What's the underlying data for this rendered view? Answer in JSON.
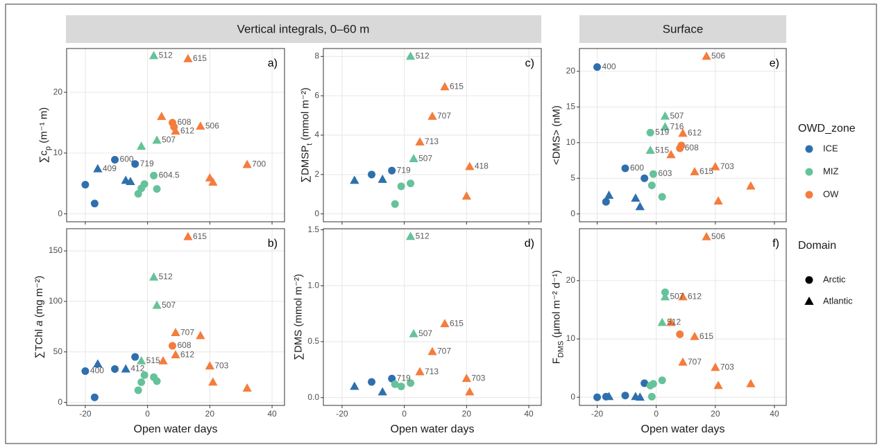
{
  "strips": [
    "Vertical integrals, 0–60 m",
    "Surface"
  ],
  "legend": {
    "zone_title": "OWD_zone",
    "zones": [
      {
        "name": "ICE",
        "color": "#2f6fad"
      },
      {
        "name": "MIZ",
        "color": "#66c29a"
      },
      {
        "name": "OW",
        "color": "#f47c3c"
      }
    ],
    "domain_title": "Domain",
    "domains": [
      {
        "name": "Arctic",
        "shape": "circle"
      },
      {
        "name": "Atlantic",
        "shape": "triangle"
      }
    ]
  },
  "chart_data": [
    {
      "type": "scatter",
      "panel_label": "a)",
      "ylabel": [
        {
          "text": "∑c"
        },
        {
          "text": "p",
          "sub": true
        },
        {
          "text": " (m⁻¹ m)"
        }
      ],
      "xlim": [
        -26,
        44
      ],
      "xticks": [
        -20,
        0,
        20,
        40
      ],
      "show_xtick_labels": false,
      "ylim": [
        -1.3,
        27.2
      ],
      "yticks": [
        0,
        10,
        20
      ],
      "grid": true,
      "x": [
        -20,
        -17,
        -16,
        -10.5,
        -7,
        -5.5,
        -4,
        2,
        -2,
        3,
        -3,
        -2,
        -1,
        2,
        3,
        13,
        4.5,
        8,
        8.5,
        9,
        17,
        32,
        20,
        21
      ],
      "y": [
        4.8,
        1.7,
        7.4,
        8.9,
        5.5,
        5.3,
        8.2,
        26,
        11.1,
        12.1,
        3.3,
        4.2,
        4.9,
        6.3,
        4.1,
        25.5,
        16,
        15,
        14.3,
        13.6,
        14.4,
        8.1,
        5.9,
        5.2
      ],
      "zone": [
        "ICE",
        "ICE",
        "ICE",
        "ICE",
        "ICE",
        "ICE",
        "ICE",
        "MIZ",
        "MIZ",
        "MIZ",
        "MIZ",
        "MIZ",
        "MIZ",
        "MIZ",
        "MIZ",
        "OW",
        "OW",
        "OW",
        "OW",
        "OW",
        "OW",
        "OW",
        "OW",
        "OW"
      ],
      "domain": [
        "Arctic",
        "Arctic",
        "Atlantic",
        "Arctic",
        "Atlantic",
        "Atlantic",
        "Arctic",
        "Atlantic",
        "Atlantic",
        "Atlantic",
        "Arctic",
        "Arctic",
        "Arctic",
        "Arctic",
        "Arctic",
        "Atlantic",
        "Atlantic",
        "Arctic",
        "Arctic",
        "Atlantic",
        "Atlantic",
        "Atlantic",
        "Atlantic",
        "Atlantic"
      ],
      "labels": [
        null,
        null,
        "409",
        "600",
        null,
        null,
        "719",
        "512",
        null,
        "507",
        null,
        null,
        null,
        "604.5",
        null,
        "615",
        null,
        "608",
        null,
        "612",
        "506",
        "700",
        null,
        null
      ]
    },
    {
      "type": "scatter",
      "panel_label": "b)",
      "ylabel": [
        {
          "text": "∑TChl "
        },
        {
          "text": "a",
          "italic": true
        },
        {
          "text": " (mg m⁻²)"
        }
      ],
      "xlabel": "Open water days",
      "xlim": [
        -26,
        44
      ],
      "xticks": [
        -20,
        0,
        20,
        40
      ],
      "show_xtick_labels": true,
      "ylim": [
        -3,
        172
      ],
      "yticks": [
        0,
        50,
        100,
        150
      ],
      "grid": true,
      "x": [
        -20,
        -17,
        -16,
        -10.5,
        -7,
        -4,
        2,
        3,
        -2,
        -3,
        -2,
        -1,
        2,
        3,
        13,
        9,
        17,
        8,
        9,
        5,
        20,
        21,
        32
      ],
      "y": [
        31,
        5,
        38,
        33,
        33,
        45,
        124,
        96,
        41,
        12,
        20,
        27,
        25,
        21,
        164,
        69,
        66,
        56,
        47,
        41,
        36,
        20,
        14
      ],
      "zone": [
        "ICE",
        "ICE",
        "ICE",
        "ICE",
        "ICE",
        "ICE",
        "MIZ",
        "MIZ",
        "MIZ",
        "MIZ",
        "MIZ",
        "MIZ",
        "MIZ",
        "MIZ",
        "OW",
        "OW",
        "OW",
        "OW",
        "OW",
        "OW",
        "OW",
        "OW",
        "OW"
      ],
      "domain": [
        "Arctic",
        "Arctic",
        "Atlantic",
        "Arctic",
        "Atlantic",
        "Arctic",
        "Atlantic",
        "Atlantic",
        "Atlantic",
        "Arctic",
        "Arctic",
        "Arctic",
        "Arctic",
        "Arctic",
        "Atlantic",
        "Atlantic",
        "Atlantic",
        "Arctic",
        "Atlantic",
        "Atlantic",
        "Atlantic",
        "Atlantic",
        "Atlantic"
      ],
      "labels": [
        "400",
        null,
        null,
        null,
        "412",
        null,
        "512",
        "507",
        "515",
        null,
        null,
        null,
        null,
        null,
        "615",
        "707",
        null,
        "608",
        "612",
        null,
        "703",
        null,
        null
      ]
    },
    {
      "type": "scatter",
      "panel_label": "c)",
      "ylabel": [
        {
          "text": "∑DMSP"
        },
        {
          "text": "t",
          "sub": true
        },
        {
          "text": " (mmol m⁻²)"
        }
      ],
      "xlim": [
        -26,
        44
      ],
      "xticks": [
        -20,
        0,
        20,
        40
      ],
      "show_xtick_labels": false,
      "ylim": [
        -0.4,
        8.4
      ],
      "yticks": [
        0,
        2,
        4,
        6,
        8
      ],
      "grid": true,
      "x": [
        -16,
        -10.5,
        -7,
        -4,
        2,
        3,
        -3,
        -1,
        2,
        13,
        9,
        5,
        21,
        20
      ],
      "y": [
        1.7,
        2.0,
        1.75,
        2.2,
        8.0,
        2.8,
        0.5,
        1.4,
        1.55,
        6.45,
        4.95,
        3.65,
        2.4,
        0.9
      ],
      "zone": [
        "ICE",
        "ICE",
        "ICE",
        "ICE",
        "MIZ",
        "MIZ",
        "MIZ",
        "MIZ",
        "MIZ",
        "OW",
        "OW",
        "OW",
        "OW",
        "OW"
      ],
      "domain": [
        "Atlantic",
        "Arctic",
        "Atlantic",
        "Arctic",
        "Atlantic",
        "Atlantic",
        "Arctic",
        "Arctic",
        "Arctic",
        "Atlantic",
        "Atlantic",
        "Atlantic",
        "Atlantic",
        "Atlantic"
      ],
      "labels": [
        null,
        null,
        null,
        "719",
        "512",
        "507",
        null,
        null,
        null,
        "615",
        "707",
        "713",
        "418",
        null
      ]
    },
    {
      "type": "scatter",
      "panel_label": "d)",
      "ylabel": [
        {
          "text": "∑DMS (mmol m⁻²)"
        }
      ],
      "xlabel": "Open water days",
      "xlim": [
        -26,
        44
      ],
      "xticks": [
        -20,
        0,
        20,
        40
      ],
      "show_xtick_labels": true,
      "ylim": [
        -0.07,
        1.51
      ],
      "yticks": [
        {
          "value": 0,
          "label": "0.0"
        },
        {
          "value": 0.5,
          "label": "0.5"
        },
        {
          "value": 1,
          "label": "1.0"
        },
        {
          "value": 1.5,
          "label": "1.5"
        }
      ],
      "grid": true,
      "x": [
        -16,
        -10.5,
        -7,
        -4,
        2,
        3,
        -3,
        -1,
        2,
        13,
        9,
        5,
        20,
        21
      ],
      "y": [
        0.1,
        0.14,
        0.05,
        0.17,
        1.44,
        0.57,
        0.12,
        0.1,
        0.13,
        0.66,
        0.41,
        0.23,
        0.17,
        0.05
      ],
      "zone": [
        "ICE",
        "ICE",
        "ICE",
        "ICE",
        "MIZ",
        "MIZ",
        "MIZ",
        "MIZ",
        "MIZ",
        "OW",
        "OW",
        "OW",
        "OW",
        "OW"
      ],
      "domain": [
        "Atlantic",
        "Arctic",
        "Atlantic",
        "Arctic",
        "Atlantic",
        "Atlantic",
        "Arctic",
        "Arctic",
        "Arctic",
        "Atlantic",
        "Atlantic",
        "Atlantic",
        "Atlantic",
        "Atlantic"
      ],
      "labels": [
        null,
        null,
        null,
        "719",
        "512",
        "507",
        null,
        null,
        null,
        "615",
        "707",
        "713",
        "703",
        null
      ]
    },
    {
      "type": "scatter",
      "panel_label": "e)",
      "ylabel": [
        {
          "text": "<DMS> (nM)"
        }
      ],
      "xlim": [
        -26,
        44
      ],
      "xticks": [
        -20,
        0,
        20,
        40
      ],
      "show_xtick_labels": false,
      "ylim": [
        -1.1,
        23.2
      ],
      "yticks": [
        0,
        5,
        10,
        15,
        20
      ],
      "grid": true,
      "x": [
        -20,
        -10.5,
        -17,
        -4,
        -16,
        -7,
        -5.5,
        3,
        -2,
        3,
        -2,
        -1,
        -1.5,
        2,
        17,
        9,
        8,
        8.5,
        5,
        13,
        20,
        21,
        32
      ],
      "y": [
        20.6,
        6.4,
        1.7,
        5,
        2.6,
        2.2,
        1.0,
        13.7,
        11.4,
        12.2,
        8.9,
        5.6,
        4.0,
        2.4,
        22.1,
        11.3,
        9.2,
        9.6,
        8.3,
        5.9,
        6.6,
        1.8,
        3.9
      ],
      "zone": [
        "ICE",
        "ICE",
        "ICE",
        "ICE",
        "ICE",
        "ICE",
        "ICE",
        "MIZ",
        "MIZ",
        "MIZ",
        "MIZ",
        "MIZ",
        "MIZ",
        "MIZ",
        "OW",
        "OW",
        "OW",
        "OW",
        "OW",
        "OW",
        "OW",
        "OW",
        "OW"
      ],
      "domain": [
        "Arctic",
        "Arctic",
        "Arctic",
        "Arctic",
        "Atlantic",
        "Atlantic",
        "Atlantic",
        "Atlantic",
        "Arctic",
        "Atlantic",
        "Atlantic",
        "Arctic",
        "Arctic",
        "Arctic",
        "Atlantic",
        "Atlantic",
        "Arctic",
        "Arctic",
        "Atlantic",
        "Atlantic",
        "Atlantic",
        "Atlantic",
        "Atlantic"
      ],
      "labels": [
        "400",
        "600",
        null,
        null,
        null,
        null,
        null,
        "507",
        "519",
        "716",
        "515",
        "603",
        null,
        null,
        "506",
        "612",
        "608",
        null,
        null,
        "615",
        "703",
        null,
        null
      ]
    },
    {
      "type": "scatter",
      "panel_label": "f)",
      "ylabel": [
        {
          "text": "F"
        },
        {
          "text": "DMS",
          "sub": true
        },
        {
          "text": " (µmol m⁻² d⁻¹)"
        }
      ],
      "xlabel": "Open water days",
      "xlim": [
        -26,
        44
      ],
      "xticks": [
        -20,
        0,
        20,
        40
      ],
      "show_xtick_labels": true,
      "ylim": [
        -1.4,
        28.9
      ],
      "yticks": [
        0,
        10,
        20
      ],
      "grid": true,
      "x": [
        -20,
        -17,
        -16,
        -10.5,
        -7,
        -5.5,
        -4,
        3,
        3,
        2,
        -1,
        -2,
        2,
        -1.5,
        17,
        9,
        5,
        8,
        13,
        9,
        20,
        21,
        32
      ],
      "y": [
        0,
        0.1,
        0.1,
        0.3,
        0.1,
        0,
        2.4,
        18,
        17.2,
        12.8,
        2.3,
        2,
        2.9,
        0.1,
        27.5,
        17.2,
        12.8,
        10.8,
        10.4,
        6,
        5.1,
        2,
        2.3
      ],
      "zone": [
        "ICE",
        "ICE",
        "ICE",
        "ICE",
        "ICE",
        "ICE",
        "ICE",
        "MIZ",
        "MIZ",
        "MIZ",
        "MIZ",
        "MIZ",
        "MIZ",
        "MIZ",
        "OW",
        "OW",
        "OW",
        "OW",
        "OW",
        "OW",
        "OW",
        "OW",
        "OW"
      ],
      "domain": [
        "Arctic",
        "Arctic",
        "Atlantic",
        "Arctic",
        "Atlantic",
        "Atlantic",
        "Arctic",
        "Arctic",
        "Atlantic",
        "Atlantic",
        "Arctic",
        "Arctic",
        "Arctic",
        "Arctic",
        "Atlantic",
        "Atlantic",
        "Atlantic",
        "Arctic",
        "Atlantic",
        "Atlantic",
        "Atlantic",
        "Atlantic",
        "Atlantic"
      ],
      "labels": [
        null,
        null,
        null,
        null,
        null,
        null,
        null,
        null,
        "507",
        "512",
        null,
        null,
        null,
        null,
        "506",
        "612",
        null,
        null,
        "615",
        "707",
        "703",
        null,
        null
      ]
    }
  ]
}
